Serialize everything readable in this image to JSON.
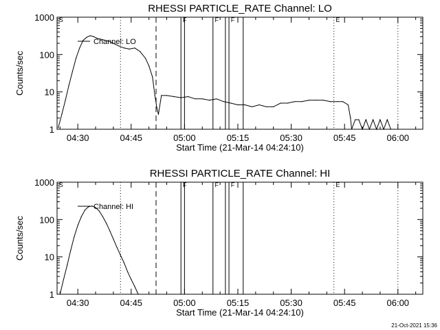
{
  "footer": {
    "timestamp": "21-Oct-2021 15:36"
  },
  "chart_data": [
    {
      "type": "line",
      "title": "RHESSI PARTICLE_RATE Channel: LO",
      "xlabel": "Start Time (21-Mar-14 04:24:10)",
      "ylabel": "Counts/sec",
      "yscale": "log",
      "ylim": [
        1,
        1000
      ],
      "xlim": [
        "04:24:10",
        "06:07:00"
      ],
      "xticks": [
        "04:30",
        "04:45",
        "05:00",
        "05:15",
        "05:30",
        "05:45",
        "06:00"
      ],
      "yticks": [
        "1",
        "10",
        "100",
        "1000"
      ],
      "grid": false,
      "legend": {
        "position": "top-left",
        "entries": [
          "Channel: LO"
        ]
      },
      "flags": [
        "S",
        "F",
        "F",
        "F",
        "E"
      ],
      "series": [
        {
          "name": "Channel: LO",
          "x": [
            "04:24:30",
            "04:25:30",
            "04:26:30",
            "04:27:30",
            "04:28:30",
            "04:29:30",
            "04:30:30",
            "04:31:30",
            "04:32:30",
            "04:33:30",
            "04:34:30",
            "04:35:30",
            "04:37:00",
            "04:38:30",
            "04:40:00",
            "04:41:30",
            "04:43:00",
            "04:44:30",
            "04:46:00",
            "04:47:30",
            "04:49:00",
            "04:50:00",
            "04:51:00",
            "04:51:40",
            "04:52:10",
            "04:52:40",
            "04:53:30",
            "04:55:00",
            "04:57:00",
            "04:59:00",
            "05:01:00",
            "05:03:00",
            "05:05:00",
            "05:07:00",
            "05:09:00",
            "05:11:00",
            "05:13:00",
            "05:15:00",
            "05:17:00",
            "05:19:00",
            "05:21:00",
            "05:23:00",
            "05:25:00",
            "05:27:00",
            "05:29:00",
            "05:31:00",
            "05:33:00",
            "05:35:00",
            "05:37:00",
            "05:39:00",
            "05:41:00",
            "05:43:00",
            "05:44:30",
            "05:46:00",
            "05:46:40",
            "05:47:00",
            "05:48:00",
            "05:49:00",
            "05:50:00",
            "05:51:00",
            "05:52:00",
            "05:53:00",
            "05:54:00",
            "05:55:00",
            "05:56:00",
            "05:57:00",
            "05:58:00",
            "05:59:00"
          ],
          "values": [
            1.1,
            2.5,
            6,
            15,
            35,
            80,
            150,
            240,
            290,
            320,
            300,
            270,
            250,
            230,
            200,
            170,
            150,
            140,
            150,
            120,
            80,
            50,
            25,
            8,
            4,
            2.5,
            8,
            8,
            7.5,
            7,
            7.5,
            6.5,
            6.5,
            6,
            6.5,
            5.5,
            5,
            4.5,
            4.5,
            4,
            4.5,
            4,
            4,
            5,
            5,
            5.5,
            5.5,
            6,
            6,
            6,
            5.5,
            5.5,
            5.5,
            4.5,
            2,
            1,
            1.8,
            1.8,
            1,
            1.8,
            1,
            1.8,
            1,
            1.8,
            1,
            1.8,
            1,
            1
          ]
        }
      ]
    },
    {
      "type": "line",
      "title": "RHESSI PARTICLE_RATE Channel: HI",
      "xlabel": "Start Time (21-Mar-14 04:24:10)",
      "ylabel": "Counts/sec",
      "yscale": "log",
      "ylim": [
        1,
        1000
      ],
      "xlim": [
        "04:24:10",
        "06:07:00"
      ],
      "xticks": [
        "04:30",
        "04:45",
        "05:00",
        "05:15",
        "05:30",
        "05:45",
        "06:00"
      ],
      "yticks": [
        "1",
        "10",
        "100",
        "1000"
      ],
      "grid": false,
      "legend": {
        "position": "top-left",
        "entries": [
          "Channel: HI"
        ]
      },
      "flags": [
        "S",
        "F",
        "F",
        "F",
        "E"
      ],
      "series": [
        {
          "name": "Channel: HI",
          "x": [
            "04:25:00",
            "04:26:00",
            "04:27:00",
            "04:28:00",
            "04:29:00",
            "04:30:00",
            "04:31:00",
            "04:32:00",
            "04:33:00",
            "04:34:00",
            "04:35:00",
            "04:36:00",
            "04:37:00",
            "04:38:00",
            "04:39:00",
            "04:40:00",
            "04:41:00",
            "04:42:00",
            "04:43:00",
            "04:44:00",
            "04:45:00",
            "04:46:00",
            "04:47:00"
          ],
          "values": [
            1,
            2.5,
            6,
            15,
            35,
            70,
            120,
            180,
            220,
            230,
            210,
            170,
            120,
            80,
            50,
            30,
            18,
            11,
            7,
            4,
            2.5,
            1.6,
            1
          ]
        }
      ]
    }
  ]
}
